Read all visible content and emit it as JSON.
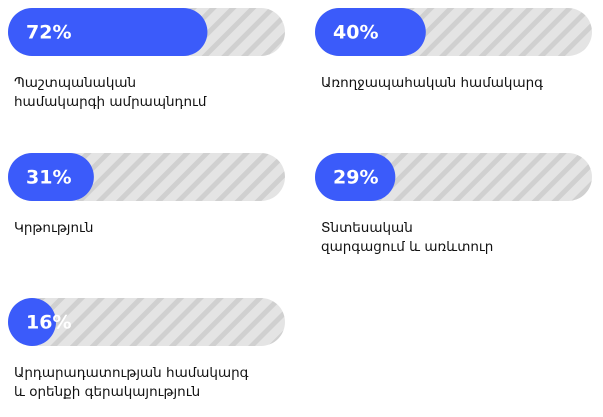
{
  "chart_data": {
    "type": "progress",
    "categories": [
      "Պաշտպանական\nհամակարգի ամրապնդում",
      "Առողջապահական համակարգ",
      "Կրթություն",
      "Տնտեսական\nզարգացում և առևտուր",
      "Արդարադատության համակարգ\nև օրենքի գերակայություն"
    ],
    "values": [
      72,
      40,
      31,
      29,
      16
    ],
    "value_labels": [
      "72%",
      "40%",
      "31%",
      "29%",
      "16%"
    ],
    "color": "#3b5bfa",
    "xlim": [
      0,
      100
    ]
  }
}
